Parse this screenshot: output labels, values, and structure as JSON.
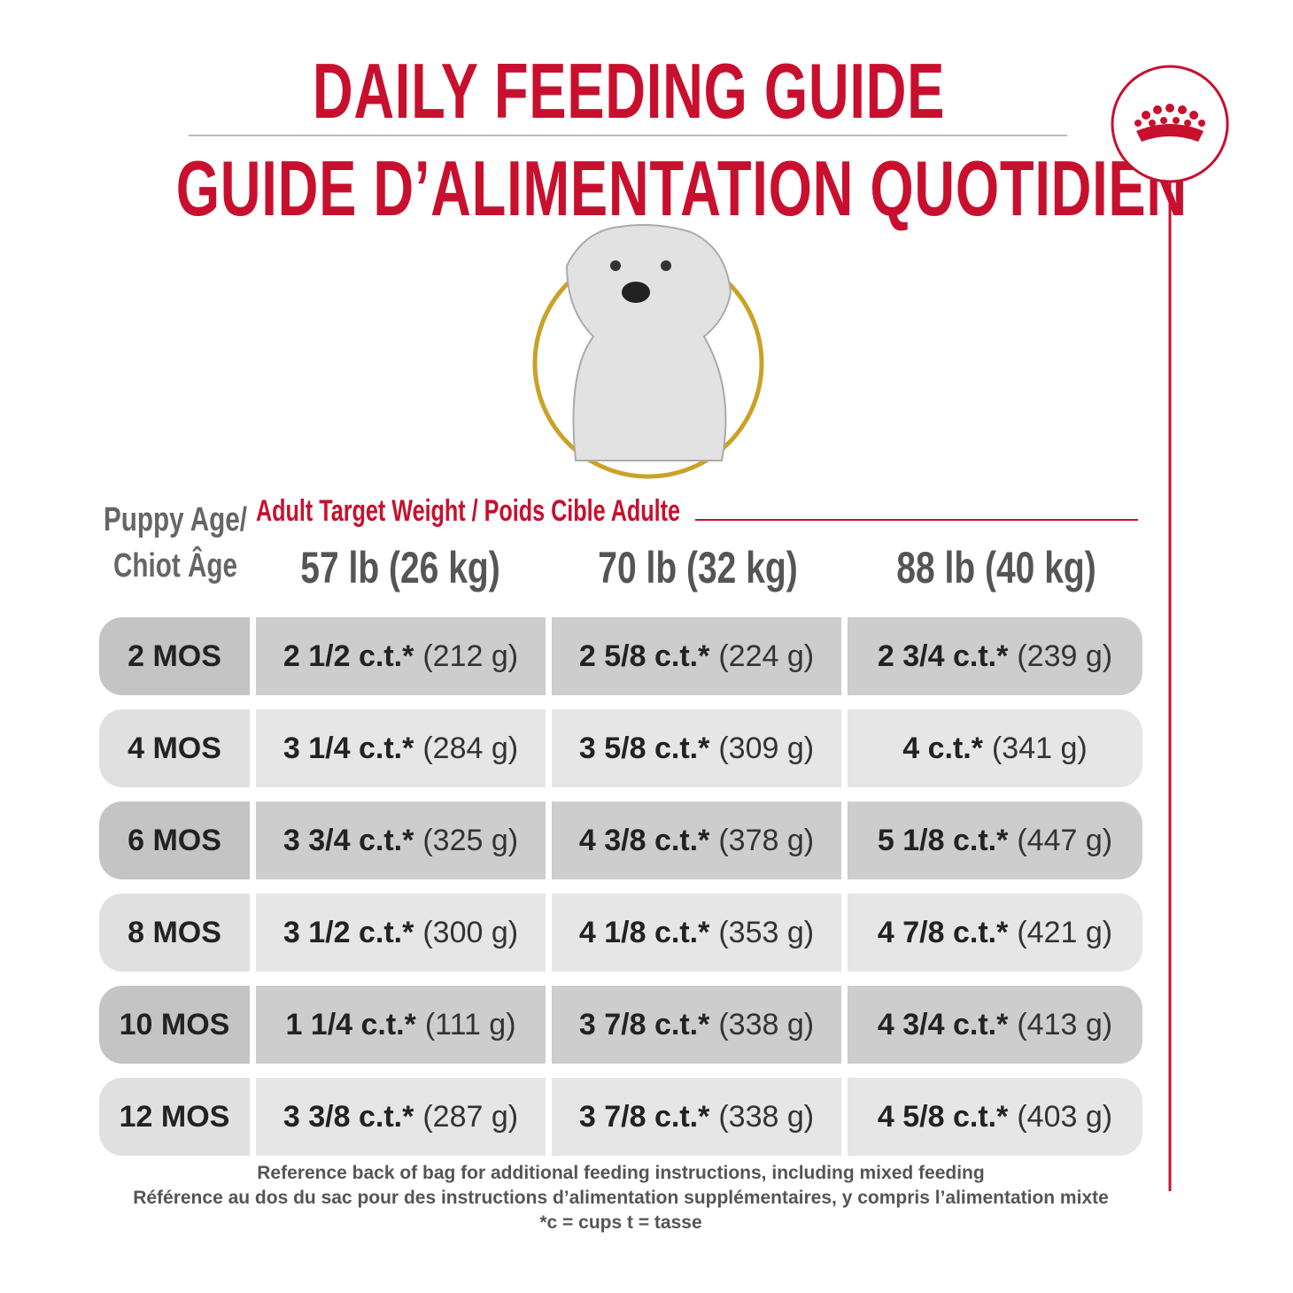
{
  "header": {
    "title_en": "DAILY FEEDING GUIDE",
    "title_fr": "GUIDE D’ALIMENTATION QUOTIDIEN"
  },
  "table": {
    "age_heading": [
      "Puppy Age/",
      "Chiot Âge"
    ],
    "weight_heading": "Adult Target Weight / Poids Cible Adulte",
    "columns": [
      "57 lb (26 kg)",
      "70 lb (32 kg)",
      "88 lb (40 kg)"
    ],
    "rows": [
      {
        "age": "2 MOS",
        "cells": [
          {
            "cups": "2 1/2 c.t.*",
            "grams": "(212 g)"
          },
          {
            "cups": "2 5/8 c.t.*",
            "grams": "(224 g)"
          },
          {
            "cups": "2 3/4 c.t.*",
            "grams": "(239 g)"
          }
        ]
      },
      {
        "age": "4 MOS",
        "cells": [
          {
            "cups": "3 1/4 c.t.*",
            "grams": "(284 g)"
          },
          {
            "cups": "3 5/8 c.t.*",
            "grams": "(309 g)"
          },
          {
            "cups": "4 c.t.*",
            "grams": "(341 g)"
          }
        ]
      },
      {
        "age": "6 MOS",
        "cells": [
          {
            "cups": "3 3/4 c.t.*",
            "grams": "(325 g)"
          },
          {
            "cups": "4 3/8 c.t.*",
            "grams": "(378 g)"
          },
          {
            "cups": "5 1/8 c.t.*",
            "grams": "(447 g)"
          }
        ]
      },
      {
        "age": "8 MOS",
        "cells": [
          {
            "cups": "3 1/2 c.t.*",
            "grams": "(300 g)"
          },
          {
            "cups": "4 1/8 c.t.*",
            "grams": "(353 g)"
          },
          {
            "cups": "4 7/8 c.t.*",
            "grams": "(421 g)"
          }
        ]
      },
      {
        "age": "10 MOS",
        "cells": [
          {
            "cups": "1 1/4 c.t.*",
            "grams": "(111 g)"
          },
          {
            "cups": "3 7/8 c.t.*",
            "grams": "(338 g)"
          },
          {
            "cups": "4 3/4 c.t.*",
            "grams": "(413 g)"
          }
        ]
      },
      {
        "age": "12 MOS",
        "cells": [
          {
            "cups": "3 3/8 c.t.*",
            "grams": "(287 g)"
          },
          {
            "cups": "3 7/8 c.t.*",
            "grams": "(338 g)"
          },
          {
            "cups": "4 5/8 c.t.*",
            "grams": "(403 g)"
          }
        ]
      }
    ]
  },
  "footer": {
    "lines": [
      "Reference back of bag for additional feeding instructions, including mixed feeding",
      "Référence au dos du sac pour des instructions d’alimentation supplémentaires, y compris l’alimentation mixte",
      "*c = cups t = tasse"
    ]
  }
}
